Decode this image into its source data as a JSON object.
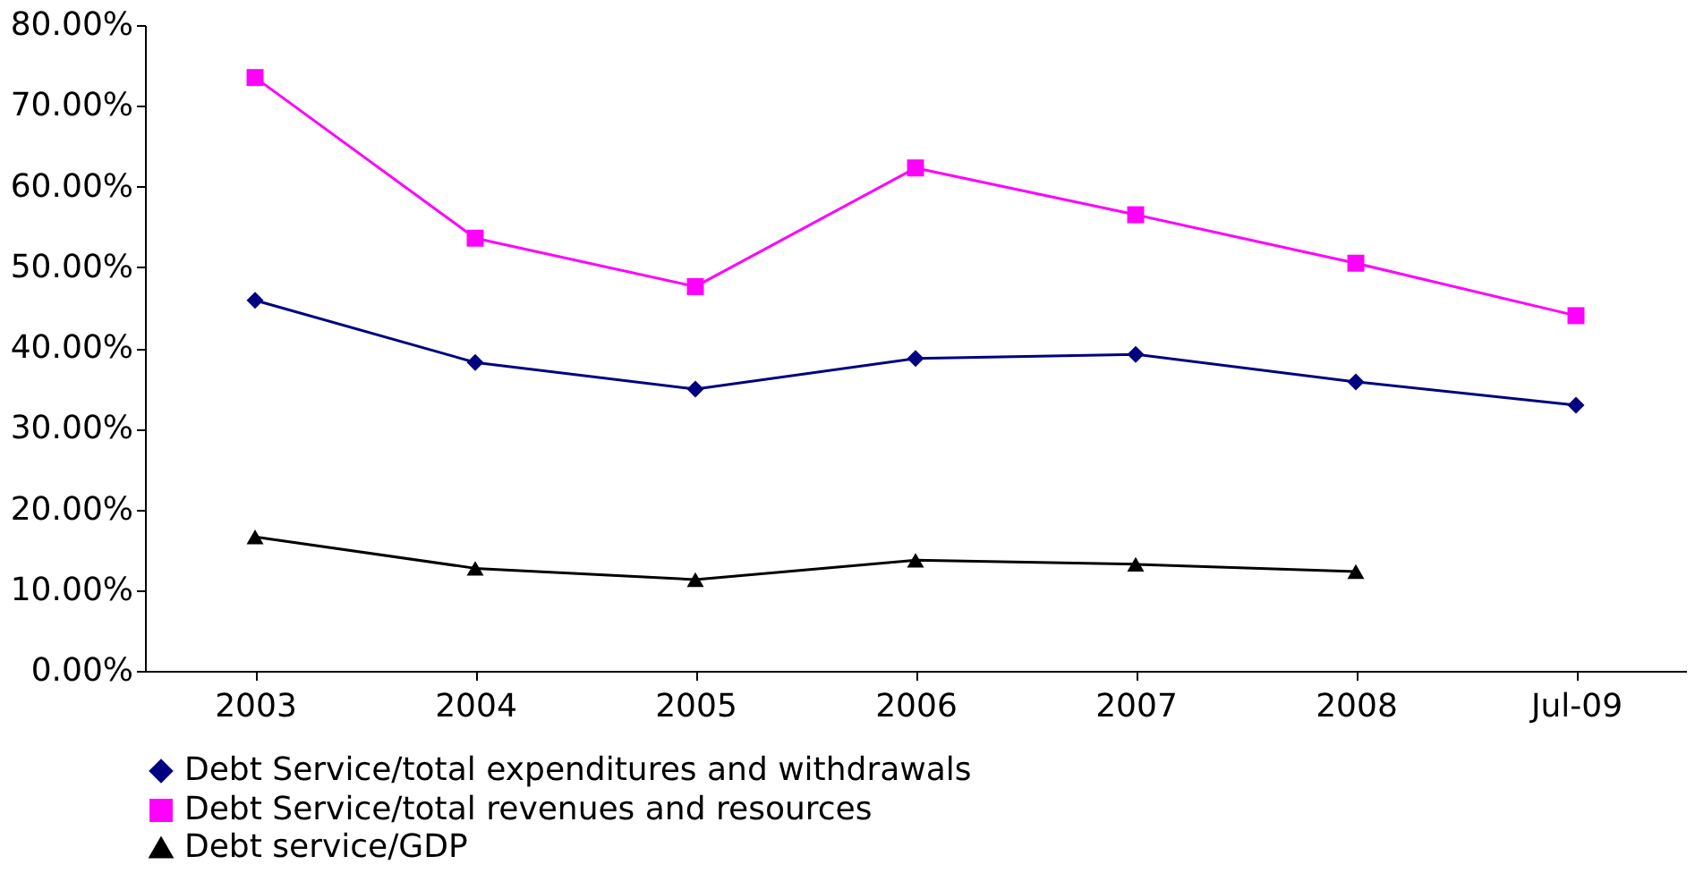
{
  "chart_data": {
    "type": "line",
    "categories": [
      "2003",
      "2004",
      "2005",
      "2006",
      "2007",
      "2008",
      "Jul-09"
    ],
    "series": [
      {
        "name": "Debt Service/total expenditures and withdrawals",
        "color": "#000080",
        "marker": "diamond",
        "values": [
          45.9,
          38.2,
          34.9,
          38.7,
          39.2,
          35.8,
          32.9
        ]
      },
      {
        "name": "Debt Service/total revenues and resources",
        "color": "#ff00ff",
        "marker": "square",
        "values": [
          73.5,
          53.6,
          47.6,
          62.3,
          56.5,
          50.5,
          44.0
        ]
      },
      {
        "name": "Debt service/GDP",
        "color": "#000000",
        "marker": "triangle",
        "values": [
          16.6,
          12.7,
          11.3,
          13.7,
          13.2,
          12.3,
          null
        ]
      }
    ],
    "ylim": [
      0,
      80
    ],
    "yticks": [
      {
        "value": 0,
        "label": "0.00%"
      },
      {
        "value": 10,
        "label": "10.00%"
      },
      {
        "value": 20,
        "label": "20.00%"
      },
      {
        "value": 30,
        "label": "30.00%"
      },
      {
        "value": 40,
        "label": "40.00%"
      },
      {
        "value": 50,
        "label": "50.00%"
      },
      {
        "value": 60,
        "label": "60.00%"
      },
      {
        "value": 70,
        "label": "70.00%"
      },
      {
        "value": 80,
        "label": "80.00%"
      }
    ],
    "grid": false,
    "legend": "bottom"
  }
}
